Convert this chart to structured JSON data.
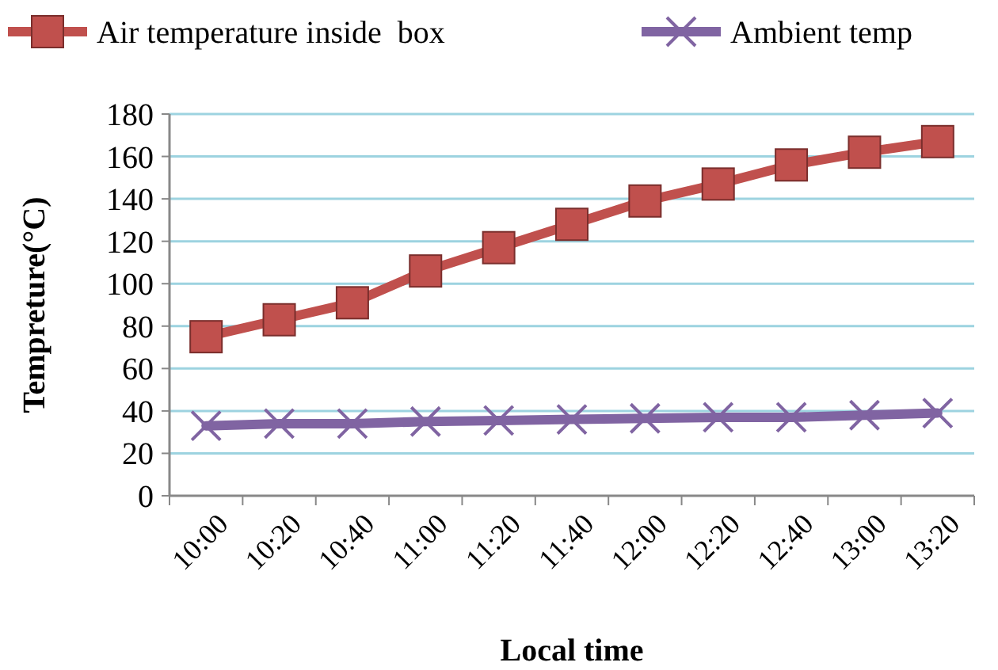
{
  "chart_data": {
    "type": "line",
    "xlabel": "Local time",
    "ylabel": "Tempreture(°C)",
    "categories": [
      "10:00",
      "10:20",
      "10:40",
      "11:00",
      "11:20",
      "11:40",
      "12:00",
      "12:20",
      "12:40",
      "13:00",
      "13:20"
    ],
    "series": [
      {
        "name": "Air temperature inside  box",
        "color": "#c0504d",
        "marker": "square",
        "values": [
          75,
          83,
          91,
          106,
          117,
          128,
          139,
          147,
          156,
          162,
          167
        ]
      },
      {
        "name": "Ambient temp",
        "color": "#8064a2",
        "marker": "cross",
        "values": [
          33,
          34,
          34,
          35,
          35.5,
          36,
          36.5,
          37,
          37,
          38,
          39
        ]
      }
    ],
    "ylim": [
      0,
      180
    ],
    "yticks": [
      0,
      20,
      40,
      60,
      80,
      100,
      120,
      140,
      160,
      180
    ],
    "grid": "y",
    "legend": "top"
  }
}
